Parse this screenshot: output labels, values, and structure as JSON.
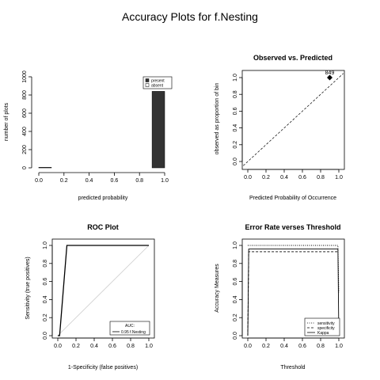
{
  "page_title": "Accuracy Plots for f.Nesting",
  "chart_data": [
    {
      "id": "histogram",
      "type": "bar",
      "title": "",
      "xlabel": "predicted probability",
      "ylabel": "number of plots",
      "xlim": [
        0,
        1
      ],
      "ylim": [
        0,
        1000
      ],
      "x_ticks": [
        "0.0",
        "0.2",
        "0.4",
        "0.6",
        "0.8",
        "1.0"
      ],
      "y_ticks": [
        "0",
        "200",
        "400",
        "600",
        "800",
        "1000"
      ],
      "bins": [
        {
          "from": 0.0,
          "to": 0.1,
          "present": 0,
          "absent": 5
        },
        {
          "from": 0.9,
          "to": 1.0,
          "present": 840,
          "absent": 0
        }
      ],
      "legend": {
        "position": "top-right",
        "entries": [
          "present",
          "absent"
        ]
      },
      "colors": {
        "present": "#333333",
        "absent": "#ffffff"
      }
    },
    {
      "id": "observed-vs-predicted",
      "type": "scatter",
      "title": "Observed vs. Predicted",
      "xlabel": "Predicted Probability of Occurrence",
      "ylabel": "observed as proportion of bin",
      "xlim": [
        0,
        1
      ],
      "ylim": [
        0,
        1
      ],
      "x_ticks": [
        "0.0",
        "0.2",
        "0.4",
        "0.6",
        "0.8",
        "1.0"
      ],
      "y_ticks": [
        "0.0",
        "0.2",
        "0.4",
        "0.6",
        "0.8",
        "1.0"
      ],
      "points": [
        {
          "x": 0.9,
          "y": 1.0,
          "label": "849"
        }
      ],
      "reference_line": "y = x (dashed)"
    },
    {
      "id": "roc",
      "type": "line",
      "title": "ROC Plot",
      "xlabel": "1-Specificity (false positives)",
      "ylabel": "Sensitivity (true positives)",
      "xlim": [
        0,
        1
      ],
      "ylim": [
        0,
        1
      ],
      "x_ticks": [
        "0.0",
        "0.2",
        "0.4",
        "0.6",
        "0.8",
        "1.0"
      ],
      "y_ticks": [
        "0.0",
        "0.2",
        "0.4",
        "0.6",
        "0.8",
        "1.0"
      ],
      "series": [
        {
          "name": "f.Nesting",
          "x": [
            0,
            0.02,
            0.1,
            1.0
          ],
          "y": [
            0,
            0.0,
            1.0,
            1.0
          ]
        }
      ],
      "reference_line": "y = x (light grey)",
      "legend": {
        "position": "bottom-right",
        "title": "AUC:",
        "entries": [
          "0.95 f.Nesting"
        ]
      }
    },
    {
      "id": "error-rate",
      "type": "line",
      "title": "Error Rate verses Threshold",
      "xlabel": "Threshold",
      "ylabel": "Accuracy Measures",
      "xlim": [
        0,
        1
      ],
      "ylim": [
        0,
        1
      ],
      "x_ticks": [
        "0.0",
        "0.2",
        "0.4",
        "0.6",
        "0.8",
        "1.0"
      ],
      "y_ticks": [
        "0.0",
        "0.2",
        "0.4",
        "0.6",
        "0.8",
        "1.0"
      ],
      "series": [
        {
          "name": "sensitivity",
          "dash": "dotted",
          "x": [
            0.0,
            0.01,
            0.99,
            1.0
          ],
          "y": [
            1.0,
            1.0,
            1.0,
            0.48
          ]
        },
        {
          "name": "specificity",
          "dash": "dashed",
          "x": [
            0.0,
            0.01,
            0.99,
            1.0
          ],
          "y": [
            0.0,
            0.93,
            0.93,
            0.93
          ]
        },
        {
          "name": "Kappa",
          "dash": "solid",
          "x": [
            0.0,
            0.01,
            0.99,
            1.0
          ],
          "y": [
            0.0,
            0.96,
            0.96,
            0.0
          ]
        }
      ],
      "legend": {
        "position": "bottom-right",
        "entries": [
          "sensitivity",
          "specificity",
          "Kappa"
        ]
      }
    }
  ]
}
